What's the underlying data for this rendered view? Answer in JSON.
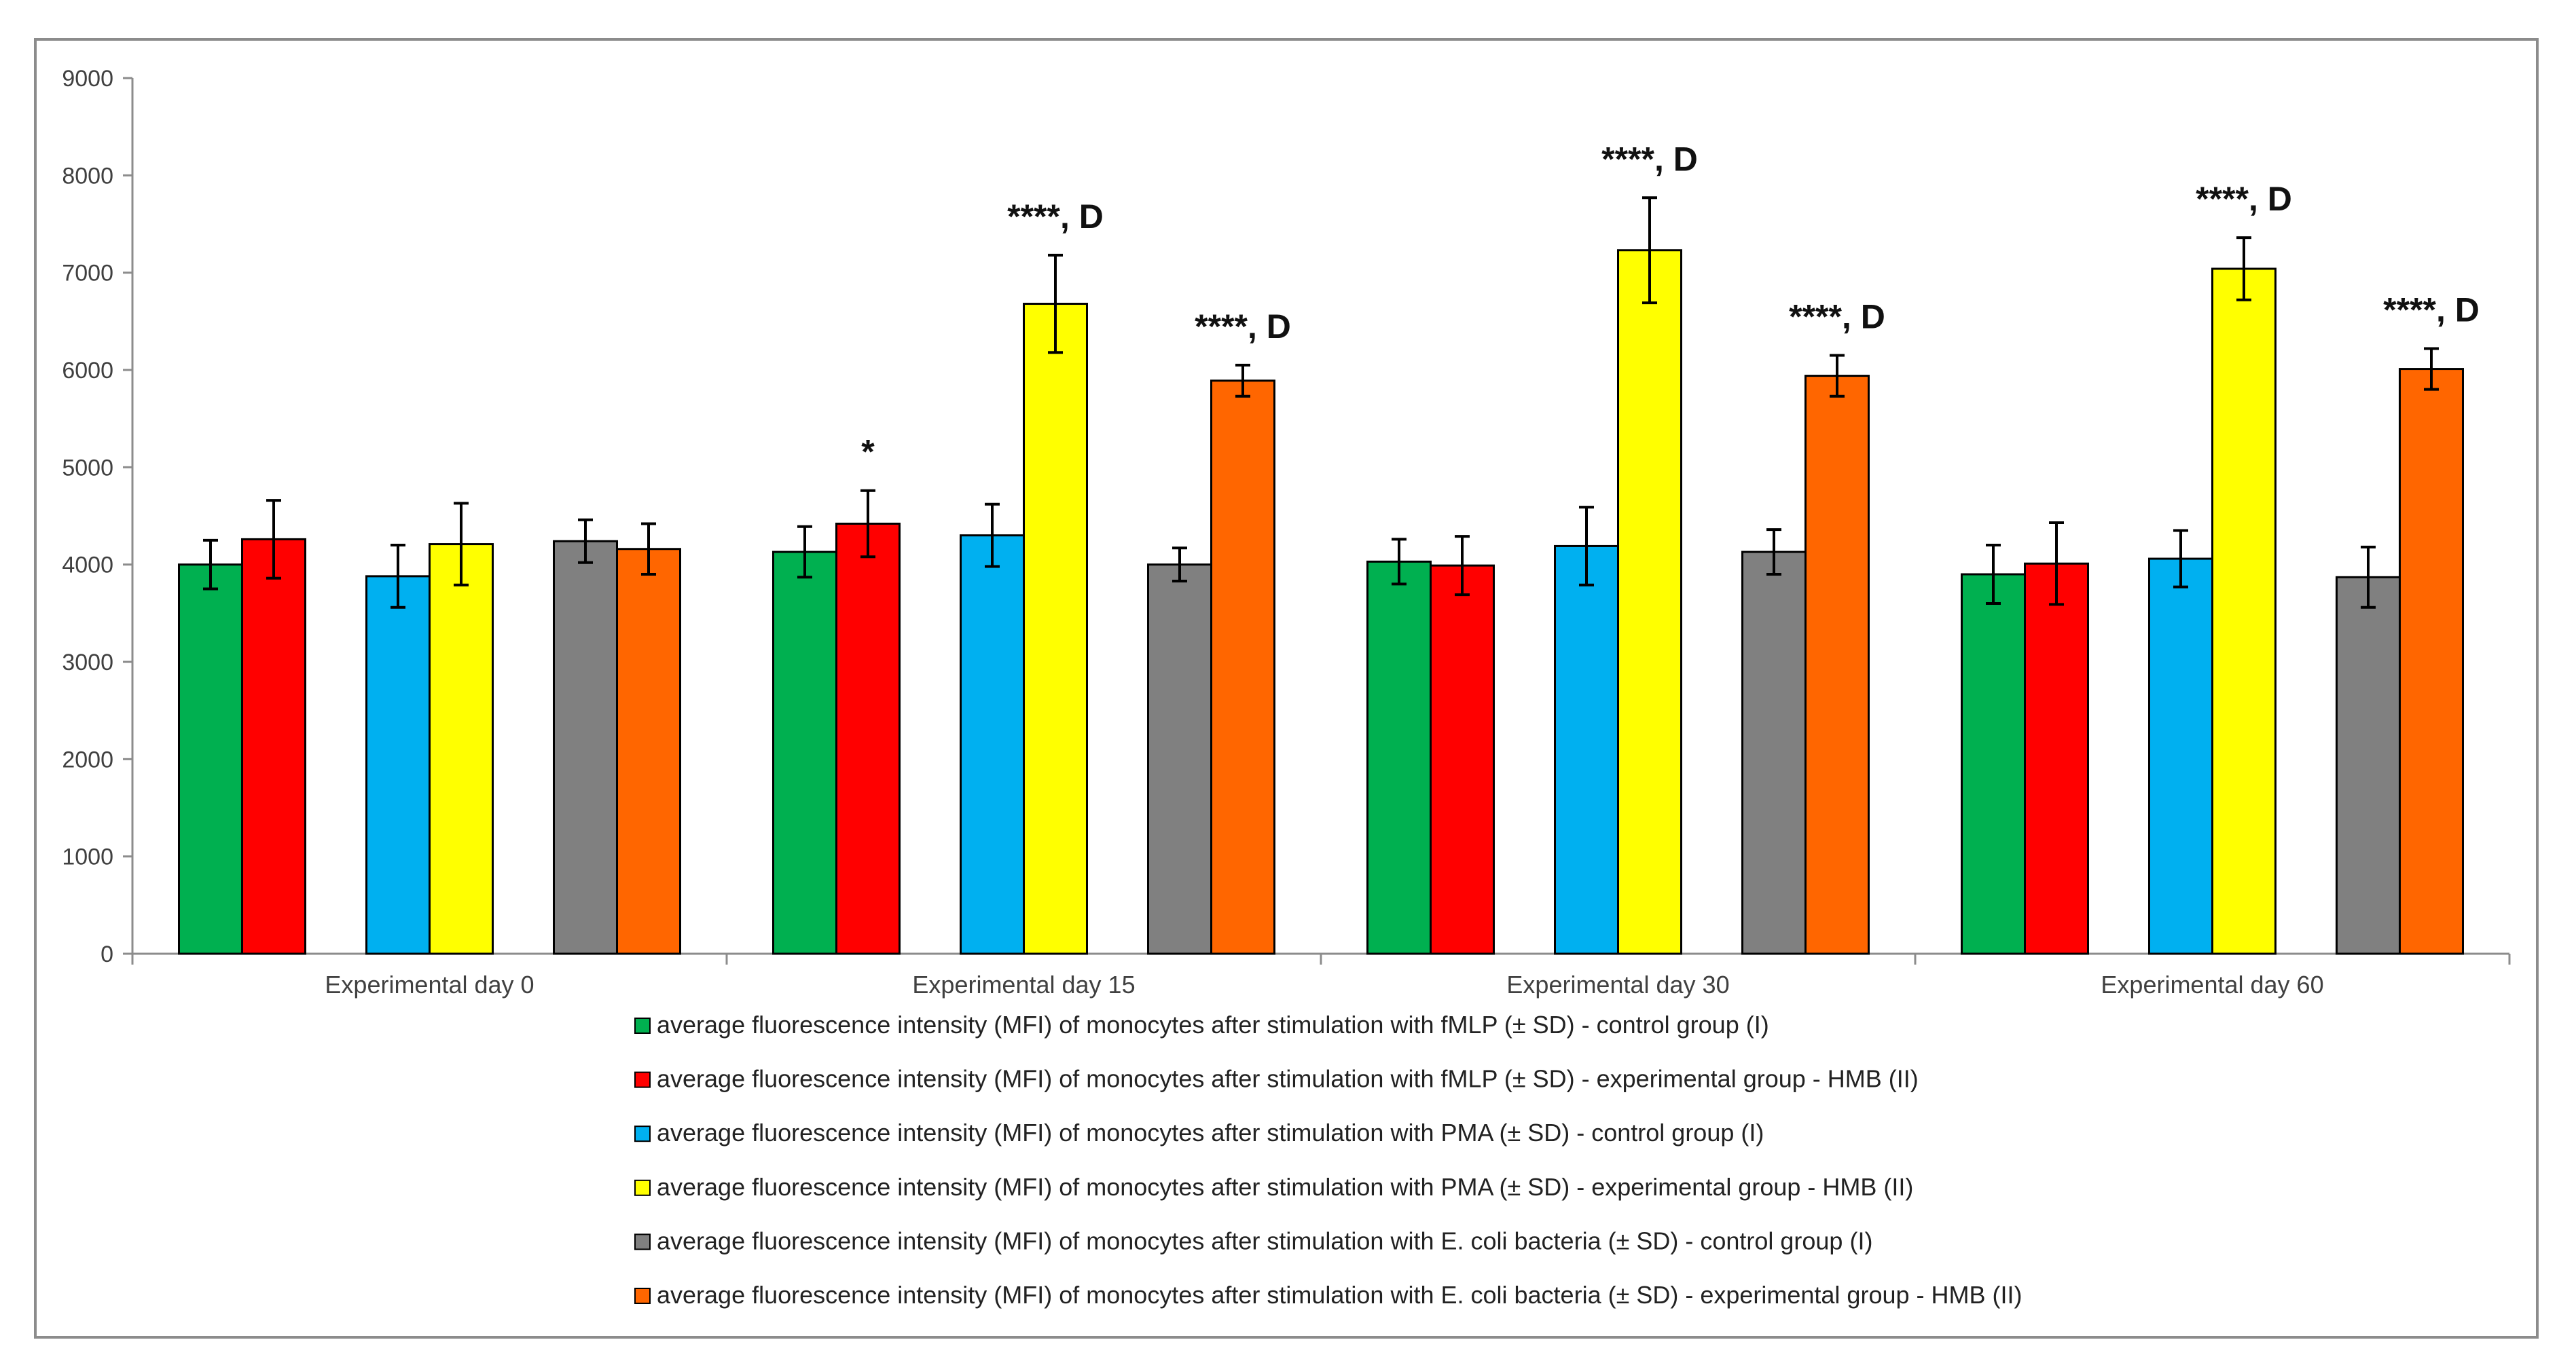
{
  "chart_data": {
    "type": "bar",
    "title": "",
    "xlabel": "",
    "ylabel": "",
    "ylim": [
      0,
      9000
    ],
    "yticks": [
      0,
      1000,
      2000,
      3000,
      4000,
      5000,
      6000,
      7000,
      8000,
      9000
    ],
    "grid": false,
    "legend_position": "bottom",
    "categories": [
      "Experimental day 0",
      "Experimental day 15",
      "Experimental day 30",
      "Experimental day 60"
    ],
    "series": [
      {
        "name": "average fluorescence intensity (MFI) of monocytes after stimulation with fMLP (± SD) - control group (I)",
        "color": "#00b050",
        "values": [
          4000,
          4130,
          4030,
          3900
        ],
        "errors": [
          250,
          260,
          230,
          300
        ],
        "annotations": [
          "",
          "",
          "",
          ""
        ]
      },
      {
        "name": "average fluorescence intensity (MFI) of monocytes after stimulation with fMLP (± SD) - experimental group - HMB (II)",
        "color": "#ff0000",
        "values": [
          4260,
          4420,
          3990,
          4010
        ],
        "errors": [
          400,
          340,
          300,
          420
        ],
        "annotations": [
          "",
          "*",
          "",
          ""
        ]
      },
      {
        "name": "average fluorescence intensity (MFI) of monocytes after stimulation with PMA (± SD) - control group (I)",
        "color": "#00b0f0",
        "values": [
          3880,
          4300,
          4190,
          4060
        ],
        "errors": [
          320,
          320,
          400,
          290
        ],
        "annotations": [
          "",
          "",
          "",
          ""
        ]
      },
      {
        "name": "average fluorescence intensity (MFI) of monocytes after stimulation with PMA (± SD) - experimental group - HMB (II)",
        "color": "#ffff00",
        "values": [
          4210,
          6680,
          7230,
          7040
        ],
        "errors": [
          420,
          500,
          540,
          320
        ],
        "annotations": [
          "",
          "****, D",
          "****, D",
          "****, D"
        ]
      },
      {
        "name": "average fluorescence intensity (MFI) of monocytes after stimulation with E. coli bacteria (± SD) - control group (I)",
        "color": "#808080",
        "values": [
          4240,
          4000,
          4130,
          3870
        ],
        "errors": [
          220,
          170,
          230,
          310
        ],
        "annotations": [
          "",
          "",
          "",
          ""
        ]
      },
      {
        "name": "average fluorescence intensity (MFI) of monocytes after stimulation with E. coli bacteria (± SD) - experimental group - HMB (II)",
        "color": "#ff6600",
        "values": [
          4160,
          5890,
          5940,
          6010
        ],
        "errors": [
          260,
          160,
          210,
          210
        ],
        "annotations": [
          "",
          "****, D",
          "****, D",
          "****, D"
        ]
      }
    ]
  }
}
